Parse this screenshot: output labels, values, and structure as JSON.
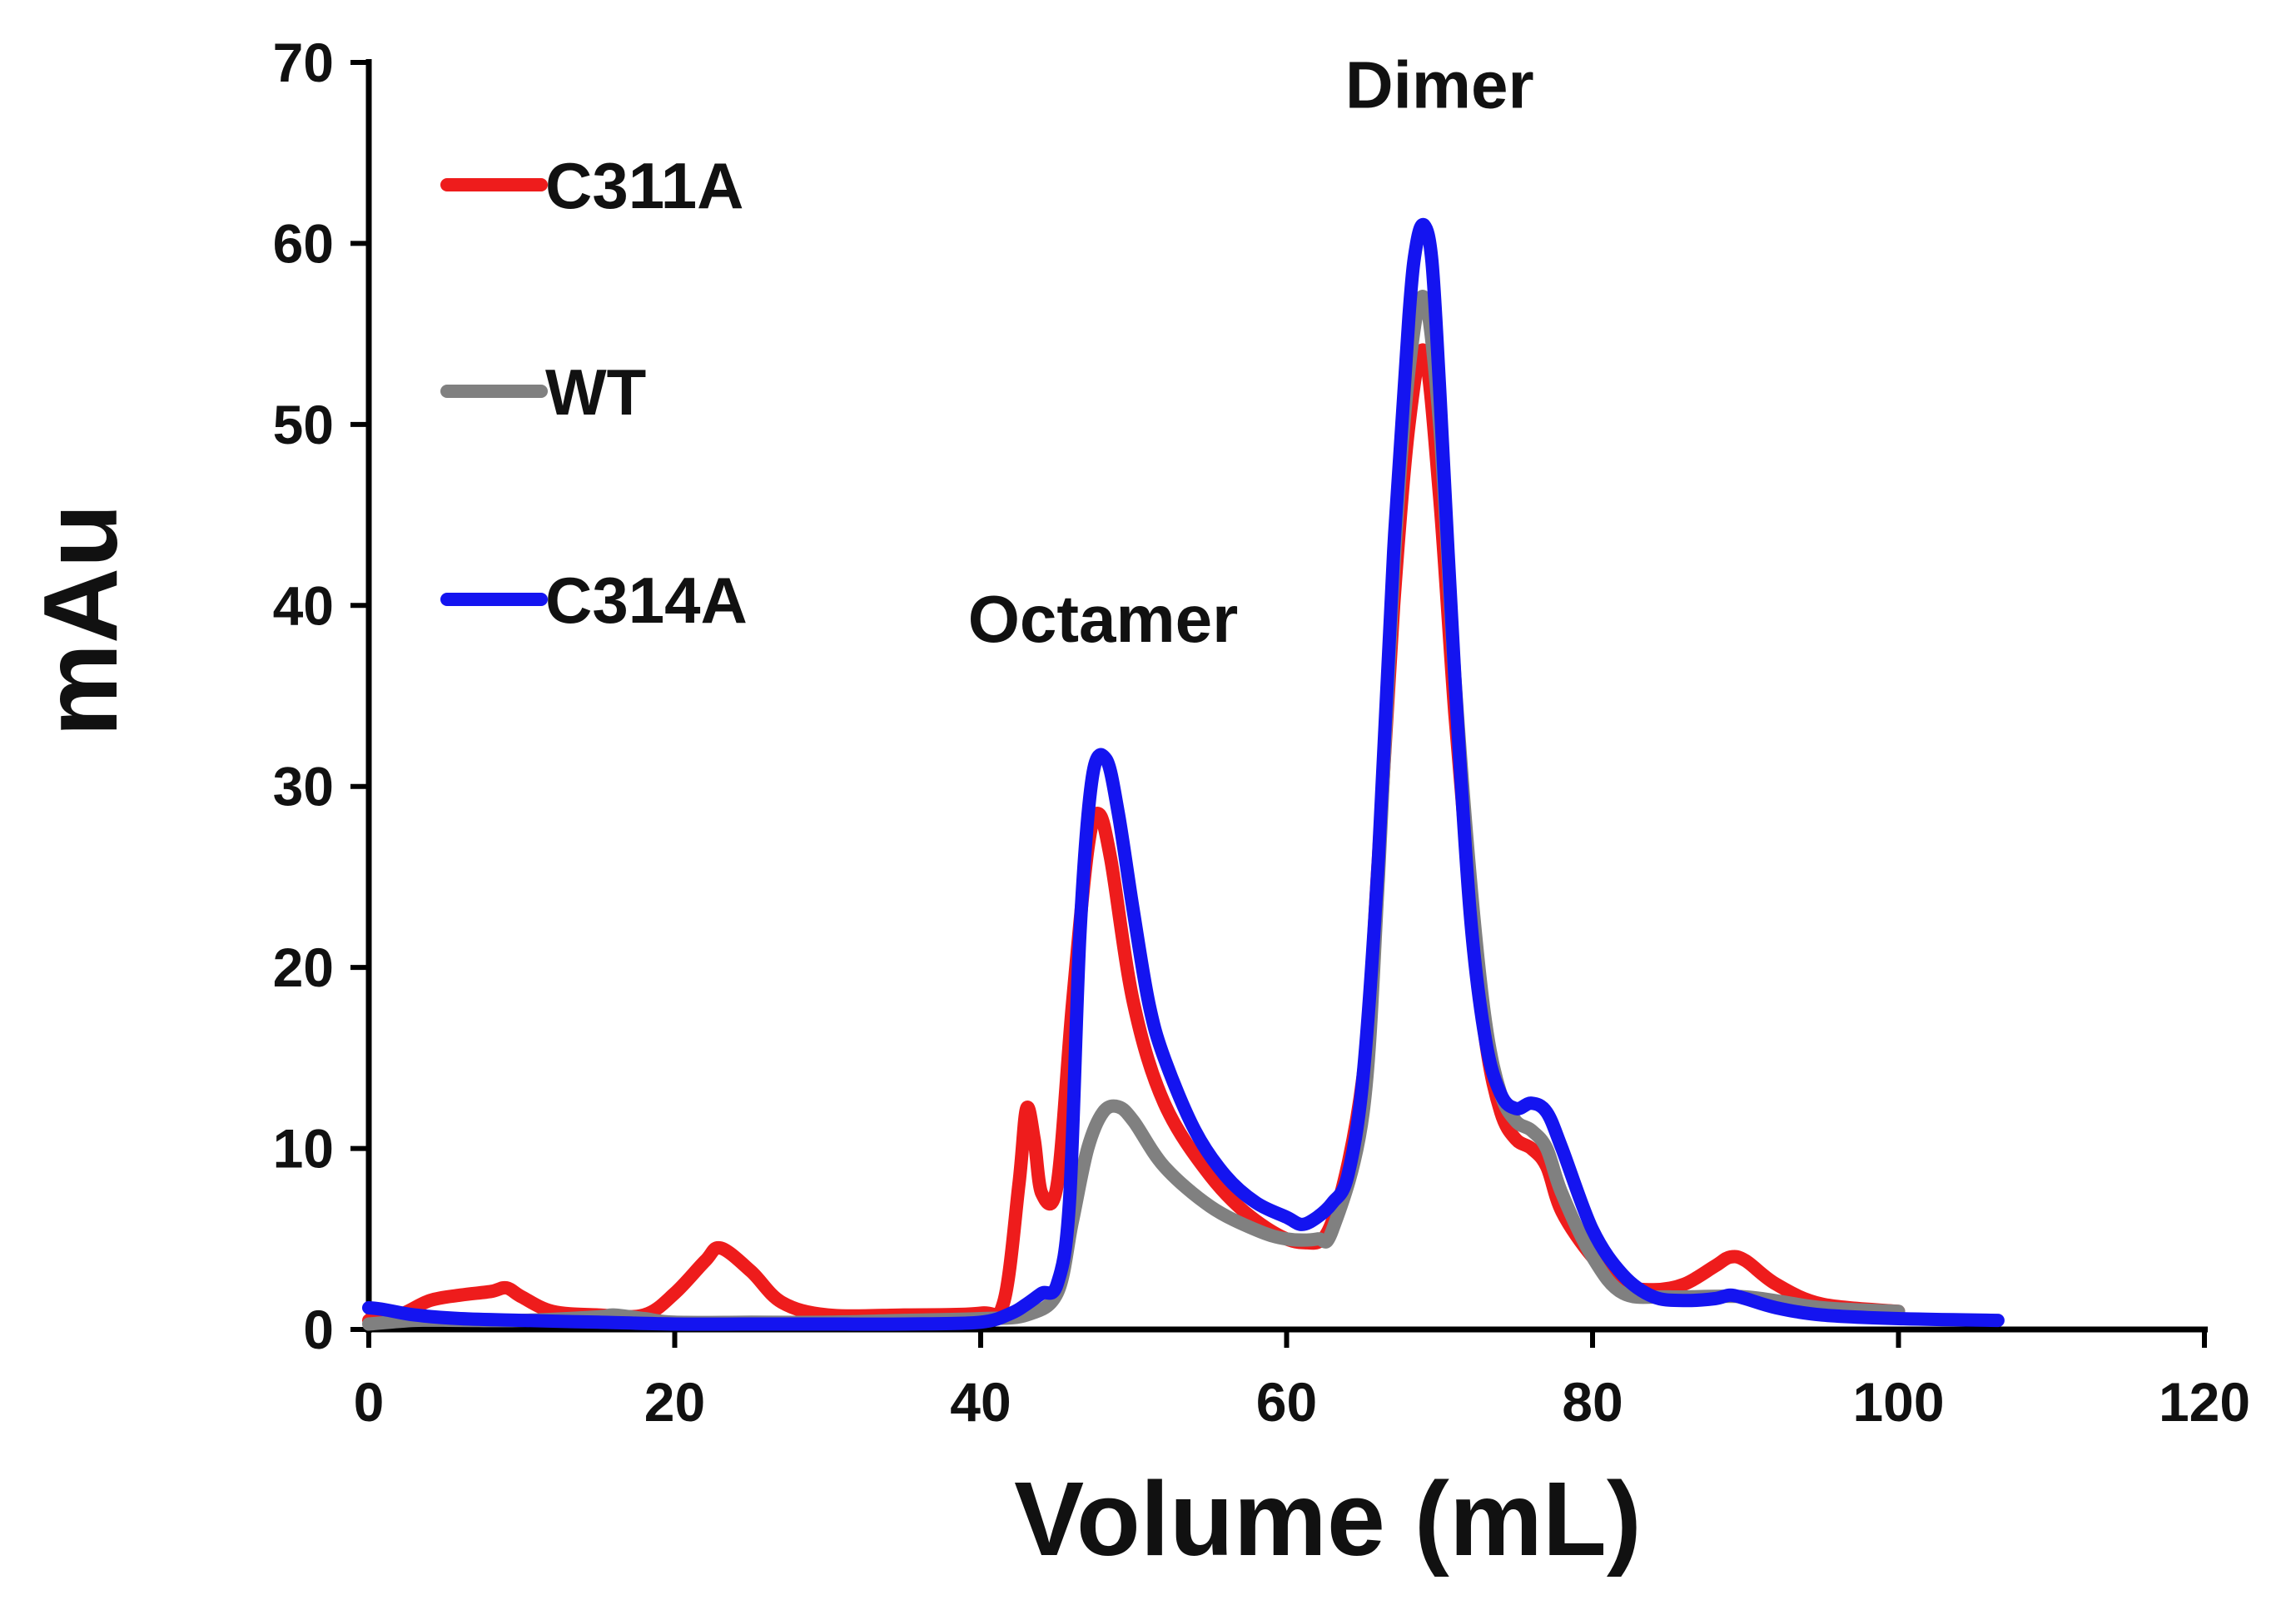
{
  "chart_data": {
    "type": "line",
    "title": "",
    "xlabel": "Volume (mL)",
    "ylabel": "mAu",
    "xlim": [
      0,
      120
    ],
    "ylim": [
      0,
      70
    ],
    "xticks": [
      0,
      20,
      40,
      60,
      80,
      100,
      120
    ],
    "yticks": [
      0,
      10,
      20,
      30,
      40,
      50,
      60,
      70
    ],
    "grid": false,
    "legend_position": "top-left",
    "annotations": [
      {
        "text": "Octamer",
        "x": 48,
        "y": 38
      },
      {
        "text": "Dimer",
        "x": 70,
        "y": 67.5
      }
    ],
    "series": [
      {
        "name": "C311A",
        "color": "#ee1c1c",
        "x": [
          0,
          2,
          4,
          6,
          8,
          9,
          10,
          12,
          15,
          18,
          20,
          22,
          23,
          25,
          27,
          30,
          35,
          40,
          41.5,
          42.5,
          43,
          43.5,
          44,
          45,
          46,
          47,
          47.7,
          48.5,
          50,
          52,
          55,
          58,
          61,
          63,
          65,
          66,
          67,
          68,
          69,
          70,
          71,
          72,
          73,
          74,
          75,
          76,
          77,
          78,
          80,
          82,
          84,
          86,
          88,
          89,
          90,
          92,
          95,
          100
        ],
        "y": [
          0.5,
          0.8,
          1.6,
          1.9,
          2.1,
          2.3,
          1.8,
          1.0,
          0.8,
          0.8,
          2.0,
          3.8,
          4.5,
          3.2,
          1.5,
          0.8,
          0.8,
          0.9,
          1.5,
          8.0,
          12.2,
          10.5,
          7.5,
          8.0,
          18.0,
          26.5,
          28.5,
          26.0,
          18.0,
          12.5,
          8.5,
          6.0,
          4.8,
          6.0,
          14.0,
          26.0,
          40.0,
          50.0,
          54.0,
          46.0,
          34.0,
          24.0,
          16.0,
          12.0,
          10.5,
          10.0,
          9.0,
          6.5,
          4.0,
          2.5,
          2.2,
          2.5,
          3.5,
          4.0,
          3.8,
          2.5,
          1.4,
          1.0
        ]
      },
      {
        "name": "WT",
        "color": "#808080",
        "x": [
          0,
          3,
          6,
          10,
          15,
          16,
          18,
          20,
          25,
          30,
          35,
          40,
          43,
          45,
          46,
          47,
          48,
          49,
          50,
          52,
          55,
          58,
          60,
          62,
          63,
          65,
          66,
          67,
          68,
          69,
          70,
          71,
          72,
          73,
          74,
          75,
          76,
          77,
          78,
          80,
          82,
          85,
          90,
          95,
          100
        ],
        "y": [
          0.3,
          0.5,
          0.5,
          0.5,
          0.7,
          0.8,
          0.6,
          0.4,
          0.4,
          0.4,
          0.5,
          0.6,
          0.8,
          2.0,
          6.0,
          10.0,
          12.0,
          12.3,
          11.5,
          9.0,
          6.8,
          5.5,
          5.0,
          5.0,
          5.5,
          12.0,
          25.0,
          42.0,
          53.0,
          57.0,
          50.0,
          36.0,
          25.0,
          17.0,
          13.0,
          11.5,
          11.0,
          10.0,
          7.5,
          4.0,
          2.0,
          1.8,
          1.8,
          1.2,
          1.0
        ]
      },
      {
        "name": "C314A",
        "color": "#1414f0",
        "x": [
          0,
          1,
          3,
          6,
          10,
          15,
          20,
          25,
          30,
          35,
          40,
          42,
          43,
          44,
          45,
          45.8,
          46.5,
          47.3,
          48.2,
          49,
          50,
          51,
          52,
          54,
          56,
          58,
          60,
          61,
          62,
          63,
          64,
          65,
          66,
          67,
          68,
          68.5,
          69,
          69.5,
          70,
          71,
          72,
          73,
          74,
          75,
          76,
          77,
          78,
          80,
          82,
          84,
          86,
          88,
          89,
          90,
          92,
          95,
          100,
          106.5
        ],
        "y": [
          1.2,
          1.1,
          0.8,
          0.6,
          0.5,
          0.4,
          0.3,
          0.3,
          0.3,
          0.3,
          0.4,
          0.9,
          1.4,
          2.0,
          2.5,
          7.0,
          22.0,
          30.5,
          31.5,
          28.5,
          23.0,
          18.0,
          15.0,
          11.0,
          8.5,
          7.0,
          6.2,
          5.8,
          6.2,
          7.0,
          8.5,
          14.0,
          26.0,
          43.0,
          56.0,
          60.0,
          61.0,
          59.0,
          52.0,
          36.0,
          23.0,
          16.0,
          13.0,
          12.2,
          12.5,
          12.0,
          10.0,
          5.5,
          3.0,
          1.8,
          1.6,
          1.7,
          1.9,
          1.7,
          1.2,
          0.8,
          0.6,
          0.5
        ]
      }
    ]
  }
}
